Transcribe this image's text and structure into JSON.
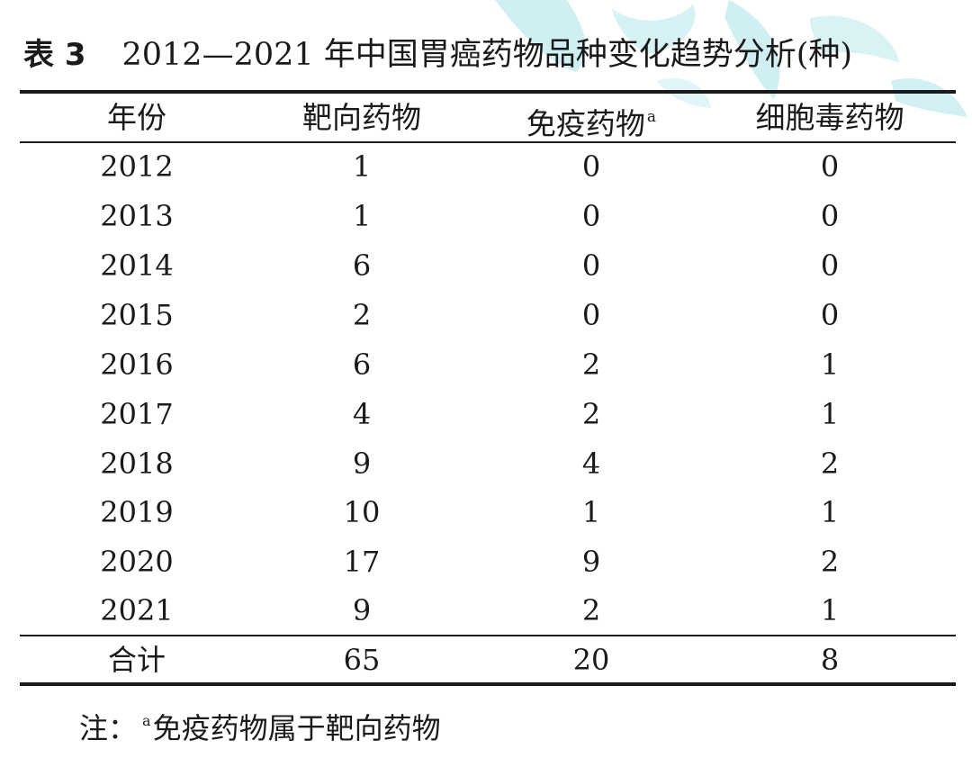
{
  "caption": {
    "tag": "表 3",
    "title": "2012—2021 年中国胃癌药物品种变化趋势分析(种)"
  },
  "table": {
    "headers": {
      "year": "年份",
      "targeted": "靶向药物",
      "immune": "免疫药物",
      "immune_sup": "a",
      "cytotoxic": "细胞毒药物"
    },
    "rows": [
      {
        "year": "2012",
        "targeted": "1",
        "immune": "0",
        "cytotoxic": "0"
      },
      {
        "year": "2013",
        "targeted": "1",
        "immune": "0",
        "cytotoxic": "0"
      },
      {
        "year": "2014",
        "targeted": "6",
        "immune": "0",
        "cytotoxic": "0"
      },
      {
        "year": "2015",
        "targeted": "2",
        "immune": "0",
        "cytotoxic": "0"
      },
      {
        "year": "2016",
        "targeted": "6",
        "immune": "2",
        "cytotoxic": "1"
      },
      {
        "year": "2017",
        "targeted": "4",
        "immune": "2",
        "cytotoxic": "1"
      },
      {
        "year": "2018",
        "targeted": "9",
        "immune": "4",
        "cytotoxic": "2"
      },
      {
        "year": "2019",
        "targeted": "10",
        "immune": "1",
        "cytotoxic": "1"
      },
      {
        "year": "2020",
        "targeted": "17",
        "immune": "9",
        "cytotoxic": "2"
      },
      {
        "year": "2021",
        "targeted": "9",
        "immune": "2",
        "cytotoxic": "1"
      }
    ],
    "total": {
      "label": "合计",
      "targeted": "65",
      "immune": "20",
      "cytotoxic": "8"
    }
  },
  "note": {
    "prefix": "注：",
    "sup": "a",
    "text": "免疫药物属于靶向药物"
  },
  "colors": {
    "text": "#1a1a1a",
    "rule": "#1a1a1a",
    "watermark": "#cfeff2"
  }
}
